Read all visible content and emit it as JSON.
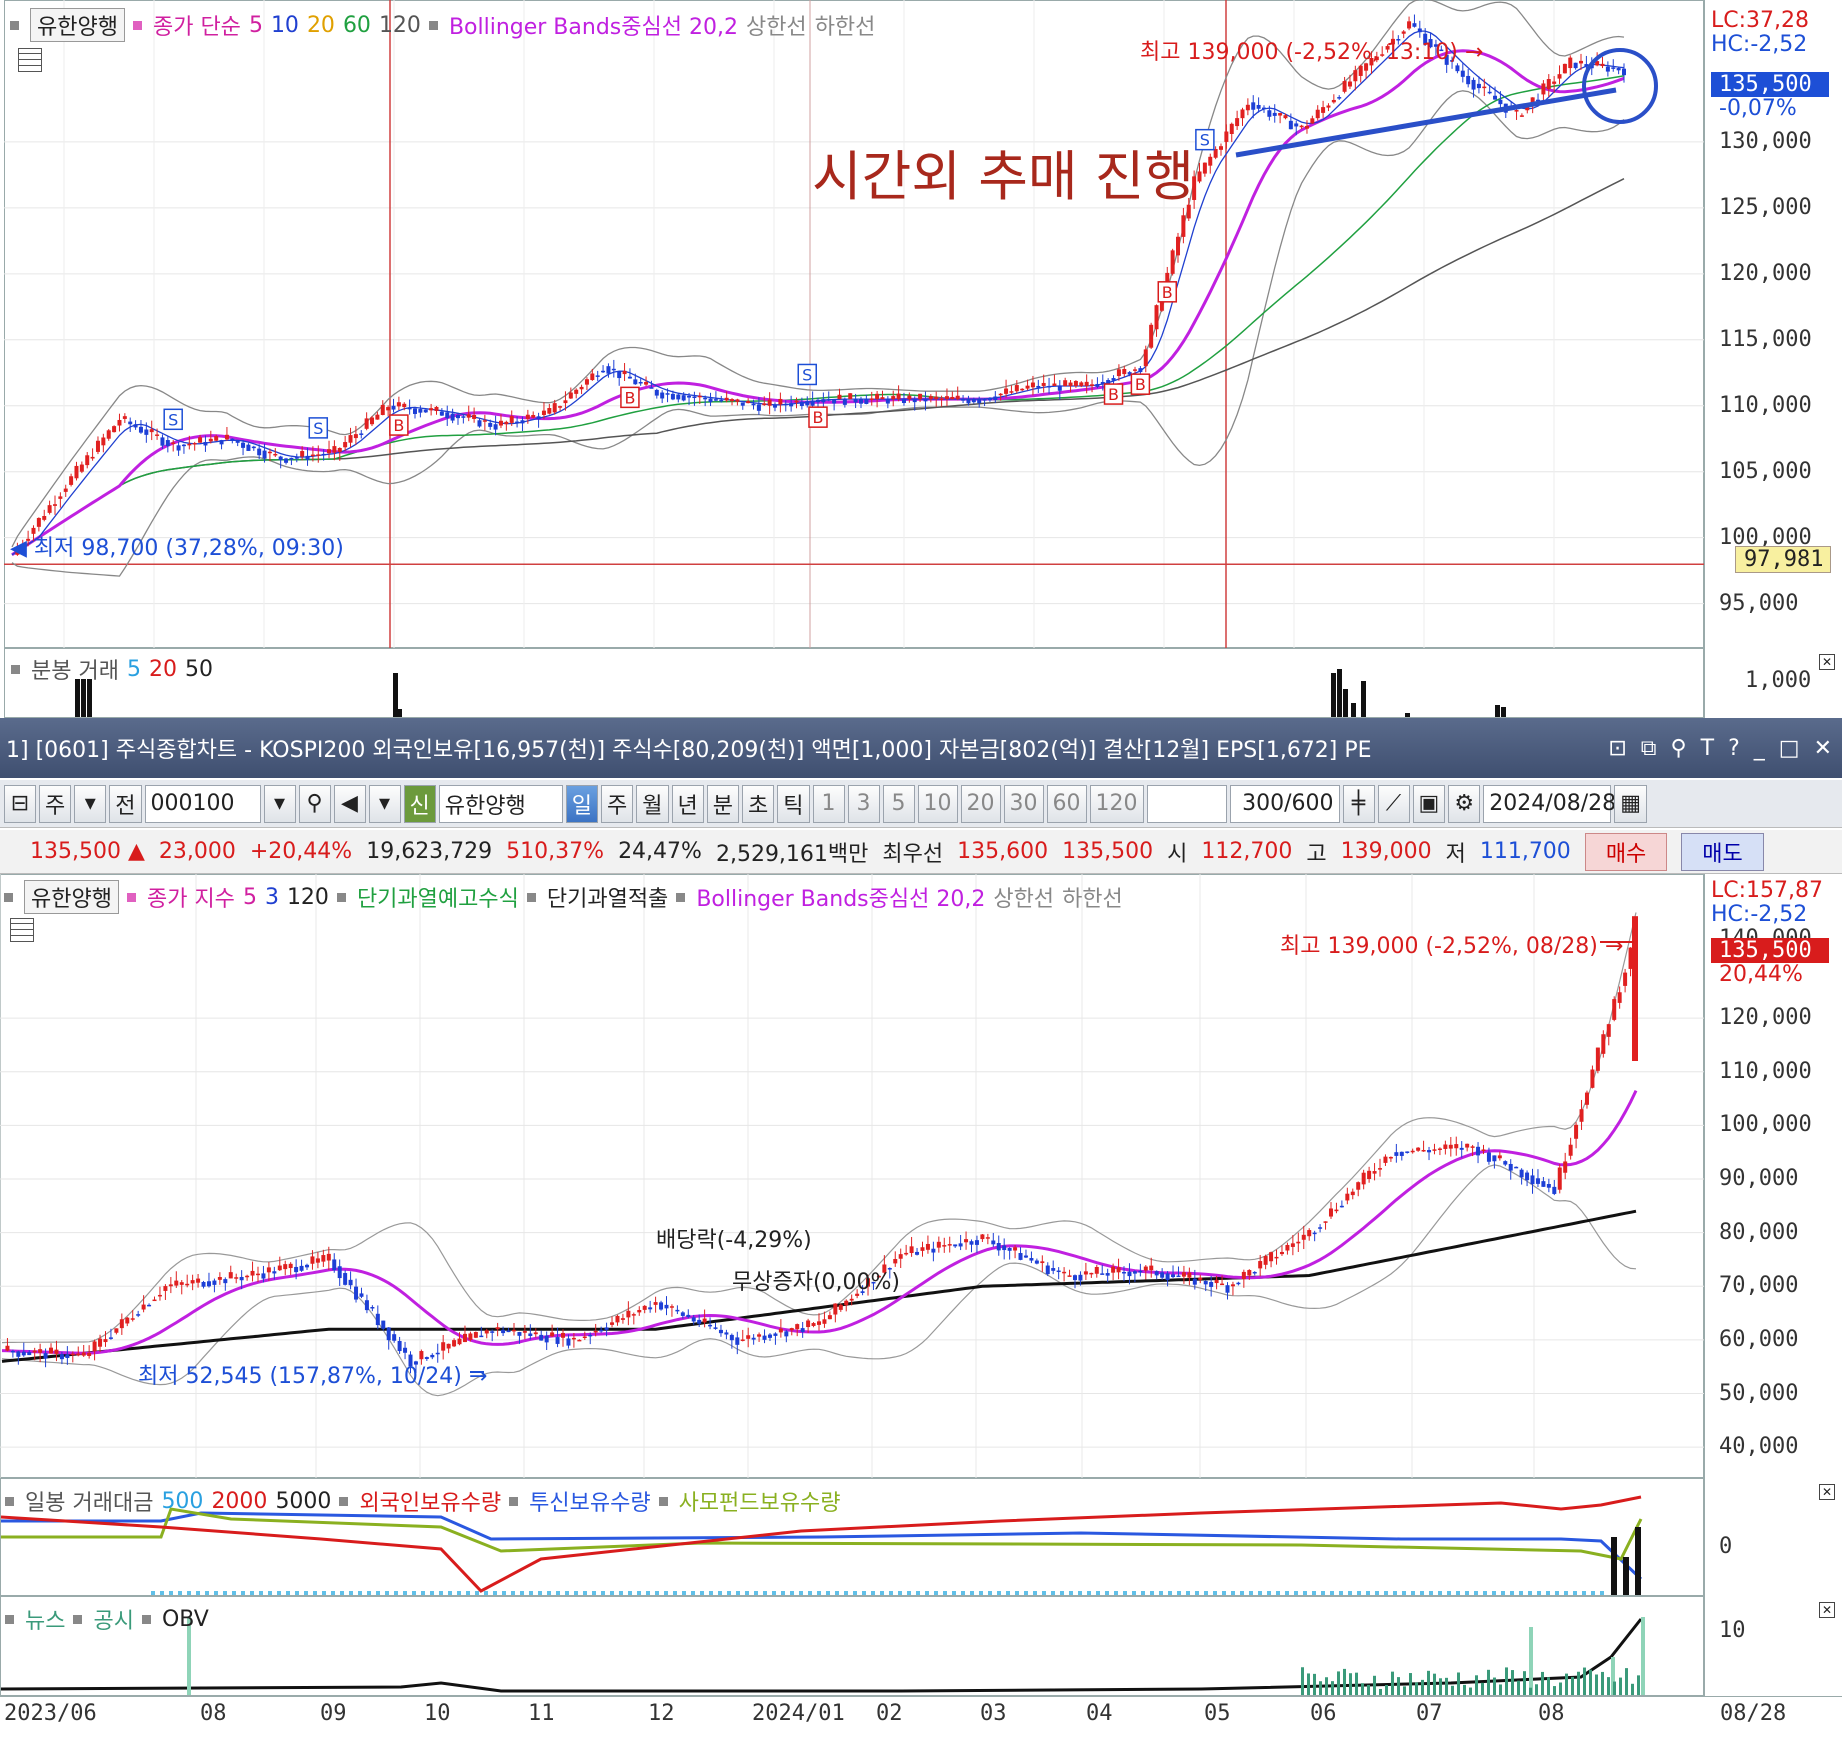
{
  "top_chart": {
    "stock": "유한양행",
    "legend": [
      "종가 단순",
      "5",
      "10",
      "20",
      "60",
      "120",
      "Bollinger Bands중심선 20,2",
      "상한선",
      "하한선"
    ],
    "lc": "LC:37,28",
    "hc": "HC:-2,52",
    "current_price": "135,500",
    "current_change": "-0,07%",
    "cross_price": "97,981",
    "high_note": "최고 139,000 (-2,52%, 13:10) →",
    "low_note": "◀ 최저 98,700 (37,28%, 09:30)",
    "annotation": "시간외 추매 진행",
    "ticks": [
      "130,000",
      "125,000",
      "120,000",
      "115,000",
      "110,000",
      "105,000",
      "100,000",
      "95,000"
    ],
    "volume_legend": [
      "분봉 거래",
      "5",
      "20",
      "50"
    ],
    "volume_tick": "1,000"
  },
  "window": {
    "title": "1] [0601] 주식종합차트 - KOSPI200 외국인보유[16,957(천)] 주식수[80,209(천)] 액면[1,000] 자본금[802(억)] 결산[12월] EPS[1,672] PE",
    "icons": [
      "⊡",
      "⧉",
      "⚲",
      "T",
      "?",
      "_",
      "□",
      "✕"
    ]
  },
  "toolbar": {
    "mode": "주",
    "jeon": "전",
    "code": "000100",
    "sin": "신",
    "name": "유한양행",
    "periods": [
      "일",
      "주",
      "월",
      "년",
      "분",
      "초",
      "틱"
    ],
    "intervals": [
      "1",
      "3",
      "5",
      "10",
      "20",
      "30",
      "60",
      "120"
    ],
    "count": "300",
    "total": "/600",
    "date": "2024/08/28"
  },
  "quote": {
    "price": "135,500 ▲",
    "change": "23,000",
    "rate": "+20,44%",
    "volume": "19,623,729",
    "vol_ratio": "510,37%",
    "turnover": "24,47%",
    "amount": "2,529,161백만",
    "best": "최우선",
    "ask": "135,600",
    "bid": "135,500",
    "open_label": "시",
    "open": "112,700",
    "high_label": "고",
    "high": "139,000",
    "low_label": "저",
    "low": "111,700",
    "buy": "매수",
    "sell": "매도"
  },
  "bottom_chart": {
    "stock": "유한양행",
    "legend": [
      "종가 지수",
      "5",
      "3",
      "120",
      "단기과열예고수식",
      "단기과열적출",
      "Bollinger Bands중심선 20,2",
      "상한선",
      "하한선"
    ],
    "lc": "LC:157,87",
    "hc": "HC:-2,52",
    "top_tick": "140,000",
    "current_price": "135,500",
    "current_change": "20,44%",
    "high_note": "최고 139,000 (-2,52%, 08/28) →",
    "low_note": "최저 52,545 (157,87%, 10/24) →",
    "dividend_note": "배당락(-4,29%)",
    "bonus_note": "무상증자(0,00%)",
    "ticks": [
      "120,000",
      "110,000",
      "100,000",
      "90,000",
      "80,000",
      "70,000",
      "60,000",
      "50,000",
      "40,000"
    ],
    "sub1_legend": [
      "일봉 거래대금",
      "500",
      "2000",
      "5000",
      "외국인보유수량",
      "투신보유수량",
      "사모펀드보유수량"
    ],
    "sub1_tick": "0",
    "sub2_legend": [
      "뉴스",
      "공시",
      "OBV"
    ],
    "sub2_tick": "10",
    "xlabels": [
      "2023/06",
      "08",
      "09",
      "10",
      "11",
      "12",
      "2024/01",
      "02",
      "03",
      "04",
      "05",
      "06",
      "07",
      "08"
    ],
    "xlabel_right": "08/28"
  },
  "chart_data": [
    {
      "type": "line",
      "title": "유한양행 분봉",
      "ylim": [
        93000,
        140000
      ],
      "series": [
        {
          "name": "종가",
          "x": [
            0,
            10,
            20,
            30,
            40,
            50,
            60,
            70,
            80,
            90,
            100,
            110,
            120,
            130,
            140,
            150,
            160,
            170,
            180,
            190,
            200,
            210,
            220,
            230,
            240,
            250,
            260,
            270,
            280,
            290,
            300
          ],
          "values": [
            98700,
            104000,
            109000,
            107000,
            107500,
            106000,
            106500,
            110000,
            109500,
            108500,
            109500,
            113000,
            111000,
            110500,
            110000,
            110500,
            110500,
            110500,
            110500,
            111500,
            111500,
            113000,
            127000,
            133000,
            131000,
            135000,
            139000,
            135000,
            132000,
            136000,
            135500
          ]
        }
      ],
      "markers": [
        "S",
        "S",
        "B",
        "B",
        "S",
        "B",
        "B",
        "B",
        "B",
        "S"
      ]
    },
    {
      "type": "line",
      "title": "유한양행 일봉",
      "ylim": [
        35000,
        145000
      ],
      "series": [
        {
          "name": "종가",
          "x": [
            0,
            15,
            30,
            45,
            60,
            75,
            90,
            105,
            120,
            135,
            150,
            165,
            180,
            195,
            210,
            225,
            240,
            255,
            270,
            285,
            300
          ],
          "values": [
            58000,
            57000,
            70000,
            72000,
            75000,
            56000,
            62000,
            60000,
            67000,
            60000,
            63000,
            76000,
            79000,
            72000,
            73000,
            70000,
            80000,
            95000,
            96000,
            88000,
            135500
          ]
        },
        {
          "name": "120",
          "x": [
            0,
            60,
            120,
            180,
            240,
            300
          ],
          "values": [
            56000,
            62000,
            62000,
            70000,
            72000,
            84000
          ]
        }
      ]
    }
  ]
}
